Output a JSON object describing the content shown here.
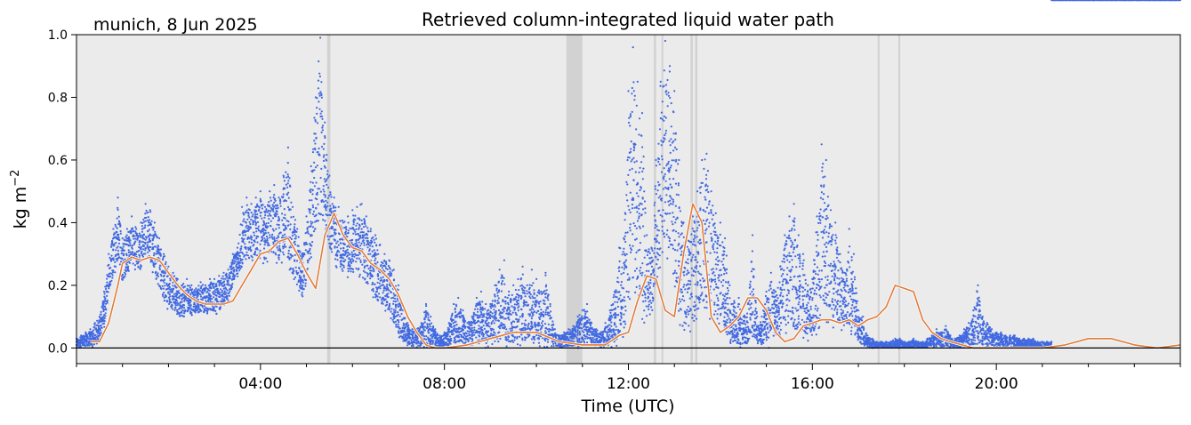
{
  "chart_data": {
    "type": "scatter",
    "location_label": "munich, 8 Jun 2025",
    "title": "Retrieved column-integrated liquid water path",
    "xlabel": "Time (UTC)",
    "ylabel": "kg m",
    "ylabel_sup": "−2",
    "xlim": [
      0,
      24
    ],
    "ylim": [
      -0.05,
      1.0
    ],
    "x_ticks": [
      {
        "x": 4,
        "label": "04:00"
      },
      {
        "x": 8,
        "label": "08:00"
      },
      {
        "x": 12,
        "label": "12:00"
      },
      {
        "x": 16,
        "label": "16:00"
      },
      {
        "x": 20,
        "label": "20:00"
      }
    ],
    "x_minor_ticks": [
      0,
      1,
      2,
      3,
      5,
      6,
      7,
      9,
      10,
      11,
      13,
      14,
      15,
      17,
      18,
      19,
      21,
      22,
      23,
      24
    ],
    "y_ticks": [
      {
        "y": 0.0,
        "label": "0.0"
      },
      {
        "y": 0.2,
        "label": "0.2"
      },
      {
        "y": 0.4,
        "label": "0.4"
      },
      {
        "y": 0.6,
        "label": "0.6"
      },
      {
        "y": 0.8,
        "label": "0.8"
      },
      {
        "y": 1.0,
        "label": "1.0"
      }
    ],
    "zero_line": 0.0,
    "background_color": "#ebebeb",
    "series": [
      {
        "kind": "scatter",
        "color": "#4169e1",
        "x": [
          0.0,
          0.1,
          0.2,
          0.3,
          0.4,
          0.5,
          0.6,
          0.7,
          0.8,
          0.9,
          1.0,
          1.1,
          1.2,
          1.3,
          1.4,
          1.5,
          1.6,
          1.7,
          1.8,
          1.9,
          2.0,
          2.1,
          2.2,
          2.3,
          2.4,
          2.5,
          2.6,
          2.7,
          2.8,
          2.9,
          3.0,
          3.1,
          3.2,
          3.3,
          3.4,
          3.5,
          3.6,
          3.7,
          3.8,
          3.9,
          4.0,
          4.1,
          4.2,
          4.3,
          4.4,
          4.5,
          4.6,
          4.7,
          4.8,
          4.9,
          5.0,
          5.1,
          5.2,
          5.3,
          5.4,
          5.5,
          5.6,
          5.7,
          5.8,
          5.9,
          6.0,
          6.1,
          6.2,
          6.3,
          6.4,
          6.5,
          6.6,
          6.7,
          6.8,
          6.9,
          7.0,
          7.1,
          7.2,
          7.3,
          7.4,
          7.5,
          7.6,
          7.7,
          7.8,
          7.9,
          8.0,
          8.1,
          8.2,
          8.3,
          8.4,
          8.5,
          8.6,
          8.7,
          8.8,
          8.9,
          9.0,
          9.1,
          9.2,
          9.3,
          9.4,
          9.5,
          9.6,
          9.7,
          9.8,
          9.9,
          10.0,
          10.1,
          10.2,
          10.3,
          10.4,
          10.5,
          10.6,
          10.7,
          10.8,
          10.9,
          11.0,
          11.1,
          11.2,
          11.3,
          11.4,
          11.5,
          11.6,
          11.7,
          11.8,
          11.9,
          12.0,
          12.1,
          12.2,
          12.3,
          12.4,
          12.5,
          12.6,
          12.7,
          12.8,
          12.9,
          13.0,
          13.1,
          13.2,
          13.3,
          13.4,
          13.5,
          13.6,
          13.7,
          13.8,
          13.9,
          14.0,
          14.1,
          14.2,
          14.3,
          14.4,
          14.5,
          14.6,
          14.7,
          14.8,
          14.9,
          15.0,
          15.1,
          15.2,
          15.3,
          15.4,
          15.5,
          15.6,
          15.7,
          15.8,
          15.9,
          16.0,
          16.1,
          16.2,
          16.3,
          16.4,
          16.5,
          16.6,
          16.7,
          16.8,
          16.9,
          17.0,
          17.1,
          17.2,
          17.3,
          17.4,
          17.5,
          17.6,
          17.7,
          17.8,
          17.9,
          18.0,
          18.1,
          18.2,
          18.3,
          18.4,
          18.5,
          18.6,
          18.7,
          18.8,
          18.9,
          19.0,
          19.1,
          19.2,
          19.3,
          19.4,
          19.5,
          19.6,
          19.7,
          19.8,
          19.9,
          20.0,
          20.1,
          20.2,
          20.3,
          20.4,
          20.5,
          20.6,
          20.7,
          20.8,
          20.9,
          21.0,
          21.1,
          21.2,
          21.3,
          21.4,
          21.5,
          21.6,
          21.7,
          21.8,
          21.9,
          22.0,
          22.1,
          22.2,
          22.3,
          22.4,
          22.5,
          22.6,
          22.7,
          22.8,
          22.9,
          23.0,
          23.1,
          23.2,
          23.3,
          23.4,
          23.5,
          23.6,
          23.7,
          23.8,
          23.9,
          24.0
        ],
        "y_max": [
          0.03,
          0.04,
          0.05,
          0.06,
          0.08,
          0.1,
          0.18,
          0.3,
          0.38,
          0.48,
          0.35,
          0.38,
          0.42,
          0.38,
          0.4,
          0.46,
          0.44,
          0.4,
          0.35,
          0.3,
          0.26,
          0.24,
          0.22,
          0.2,
          0.22,
          0.2,
          0.19,
          0.21,
          0.2,
          0.22,
          0.22,
          0.23,
          0.24,
          0.25,
          0.3,
          0.32,
          0.45,
          0.48,
          0.46,
          0.48,
          0.5,
          0.45,
          0.5,
          0.52,
          0.48,
          0.55,
          0.64,
          0.45,
          0.38,
          0.3,
          0.42,
          0.58,
          0.8,
          0.99,
          0.72,
          0.55,
          0.48,
          0.45,
          0.4,
          0.42,
          0.44,
          0.45,
          0.46,
          0.42,
          0.38,
          0.36,
          0.33,
          0.3,
          0.28,
          0.25,
          0.2,
          0.12,
          0.08,
          0.06,
          0.06,
          0.08,
          0.14,
          0.1,
          0.06,
          0.04,
          0.05,
          0.08,
          0.14,
          0.16,
          0.12,
          0.08,
          0.1,
          0.16,
          0.18,
          0.14,
          0.14,
          0.2,
          0.25,
          0.28,
          0.18,
          0.2,
          0.22,
          0.26,
          0.2,
          0.25,
          0.22,
          0.18,
          0.24,
          0.14,
          0.06,
          0.04,
          0.05,
          0.06,
          0.07,
          0.1,
          0.12,
          0.14,
          0.08,
          0.06,
          0.05,
          0.08,
          0.12,
          0.18,
          0.32,
          0.35,
          0.82,
          0.96,
          0.85,
          0.75,
          0.36,
          0.32,
          0.6,
          0.85,
          0.98,
          0.9,
          0.82,
          0.6,
          0.4,
          0.38,
          0.42,
          0.5,
          0.6,
          0.62,
          0.5,
          0.43,
          0.4,
          0.35,
          0.2,
          0.15,
          0.16,
          0.1,
          0.14,
          0.36,
          0.1,
          0.1,
          0.18,
          0.24,
          0.18,
          0.26,
          0.36,
          0.42,
          0.46,
          0.36,
          0.3,
          0.2,
          0.22,
          0.42,
          0.65,
          0.6,
          0.44,
          0.4,
          0.3,
          0.24,
          0.38,
          0.3,
          0.12,
          0.1,
          0.04,
          0.03,
          0.02,
          0.02,
          0.02,
          0.02,
          0.03,
          0.03,
          0.02,
          0.02,
          0.03,
          0.02,
          0.02,
          0.03,
          0.04,
          0.06,
          0.05,
          0.07,
          0.04,
          0.03,
          0.04,
          0.06,
          0.08,
          0.12,
          0.2,
          0.1,
          0.08,
          0.06,
          0.05,
          0.05,
          0.04,
          0.04,
          0.04,
          0.03,
          0.03,
          0.03,
          0.03,
          0.02,
          0.02,
          0.02,
          0.02
        ],
        "y_min": [
          0.0,
          0.0,
          0.0,
          0.0,
          0.0,
          0.02,
          0.06,
          0.16,
          0.22,
          0.26,
          0.2,
          0.22,
          0.26,
          0.24,
          0.24,
          0.28,
          0.26,
          0.22,
          0.18,
          0.14,
          0.12,
          0.11,
          0.1,
          0.1,
          0.1,
          0.1,
          0.1,
          0.1,
          0.1,
          0.11,
          0.1,
          0.11,
          0.12,
          0.14,
          0.2,
          0.22,
          0.24,
          0.26,
          0.24,
          0.28,
          0.26,
          0.26,
          0.28,
          0.28,
          0.26,
          0.26,
          0.25,
          0.2,
          0.18,
          0.14,
          0.2,
          0.28,
          0.32,
          0.36,
          0.32,
          0.3,
          0.26,
          0.24,
          0.22,
          0.22,
          0.22,
          0.2,
          0.2,
          0.18,
          0.16,
          0.14,
          0.12,
          0.1,
          0.08,
          0.06,
          0.03,
          0.01,
          0.0,
          0.0,
          0.0,
          0.0,
          0.0,
          0.0,
          0.0,
          0.0,
          0.0,
          0.0,
          0.0,
          0.0,
          0.0,
          0.0,
          0.0,
          0.0,
          0.0,
          0.0,
          0.0,
          0.0,
          0.0,
          0.0,
          0.0,
          0.0,
          0.0,
          0.0,
          0.0,
          0.0,
          0.0,
          0.0,
          0.0,
          0.0,
          0.0,
          0.0,
          0.0,
          0.0,
          0.0,
          0.0,
          0.0,
          0.0,
          0.0,
          0.0,
          0.0,
          0.0,
          0.0,
          0.0,
          0.0,
          0.0,
          0.06,
          0.08,
          0.08,
          0.06,
          0.06,
          0.1,
          0.16,
          0.2,
          0.24,
          0.2,
          0.14,
          0.06,
          0.04,
          0.04,
          0.05,
          0.06,
          0.07,
          0.07,
          0.06,
          0.06,
          0.05,
          0.02,
          0.0,
          0.0,
          0.0,
          0.0,
          0.0,
          0.0,
          0.0,
          0.0,
          0.0,
          0.0,
          0.02,
          0.02,
          0.04,
          0.04,
          0.02,
          0.02,
          0.02,
          0.02,
          0.02,
          0.04,
          0.08,
          0.08,
          0.06,
          0.06,
          0.06,
          0.05,
          0.02,
          0.02,
          0.01,
          0.0,
          0.0,
          0.0,
          0.0,
          0.0,
          0.0,
          0.0,
          0.0,
          0.0,
          0.0,
          0.0,
          0.0,
          0.0,
          0.0,
          0.0,
          0.0,
          0.0,
          0.0,
          0.0,
          0.0,
          0.0,
          0.0,
          0.0,
          0.0,
          0.0,
          0.0,
          0.0,
          0.0,
          0.0,
          0.0,
          0.0,
          0.0,
          0.0,
          0.0,
          0.0,
          0.0,
          0.0,
          0.0,
          0.0,
          0.0,
          0.0,
          0.0
        ]
      },
      {
        "kind": "line",
        "color": "#e07b39",
        "x": [
          0.3,
          0.5,
          0.7,
          0.9,
          1.0,
          1.2,
          1.4,
          1.6,
          1.8,
          2.0,
          2.2,
          2.4,
          2.6,
          2.8,
          3.0,
          3.2,
          3.4,
          3.6,
          3.8,
          4.0,
          4.2,
          4.4,
          4.6,
          4.8,
          5.0,
          5.2,
          5.4,
          5.6,
          5.8,
          6.0,
          6.2,
          6.4,
          6.6,
          6.8,
          7.0,
          7.2,
          7.4,
          7.6,
          7.8,
          8.0,
          8.5,
          9.0,
          9.5,
          10.0,
          10.5,
          11.0,
          11.5,
          11.8,
          12.0,
          12.2,
          12.4,
          12.6,
          12.8,
          13.0,
          13.2,
          13.4,
          13.6,
          13.8,
          14.0,
          14.2,
          14.4,
          14.6,
          14.8,
          15.0,
          15.2,
          15.4,
          15.6,
          15.8,
          16.0,
          16.2,
          16.4,
          16.6,
          16.8,
          17.0,
          17.2,
          17.4,
          17.6,
          17.8,
          18.0,
          18.2,
          18.4,
          18.6,
          18.8,
          19.0,
          19.5,
          20.0,
          20.5,
          21.0,
          21.5,
          22.0,
          22.5,
          23.0,
          23.5,
          24.0
        ],
        "y": [
          0.02,
          0.02,
          0.08,
          0.2,
          0.27,
          0.29,
          0.28,
          0.29,
          0.28,
          0.24,
          0.2,
          0.17,
          0.15,
          0.14,
          0.14,
          0.14,
          0.15,
          0.2,
          0.25,
          0.3,
          0.31,
          0.34,
          0.35,
          0.3,
          0.24,
          0.19,
          0.36,
          0.43,
          0.36,
          0.32,
          0.31,
          0.27,
          0.25,
          0.22,
          0.17,
          0.1,
          0.05,
          0.01,
          0.0,
          0.0,
          0.01,
          0.03,
          0.05,
          0.05,
          0.02,
          0.01,
          0.01,
          0.04,
          0.05,
          0.15,
          0.23,
          0.22,
          0.12,
          0.1,
          0.3,
          0.46,
          0.4,
          0.1,
          0.05,
          0.07,
          0.1,
          0.16,
          0.16,
          0.12,
          0.05,
          0.02,
          0.03,
          0.07,
          0.08,
          0.09,
          0.09,
          0.08,
          0.09,
          0.07,
          0.09,
          0.1,
          0.13,
          0.2,
          0.19,
          0.18,
          0.09,
          0.05,
          0.03,
          0.02,
          0.0,
          0.0,
          0.0,
          0.0,
          0.01,
          0.03,
          0.03,
          0.01,
          0.0,
          0.01
        ]
      }
    ],
    "gap_regions": [
      {
        "x0": 5.45,
        "x1": 5.52
      },
      {
        "x0": 10.65,
        "x1": 11.0
      },
      {
        "x0": 12.55,
        "x1": 12.6
      },
      {
        "x0": 12.72,
        "x1": 12.76
      },
      {
        "x0": 13.35,
        "x1": 13.4
      },
      {
        "x0": 13.45,
        "x1": 13.5
      },
      {
        "x0": 17.42,
        "x1": 17.46
      },
      {
        "x0": 17.87,
        "x1": 17.91
      }
    ],
    "gap_color": "#cccccc",
    "grid": false,
    "legend": "none"
  }
}
